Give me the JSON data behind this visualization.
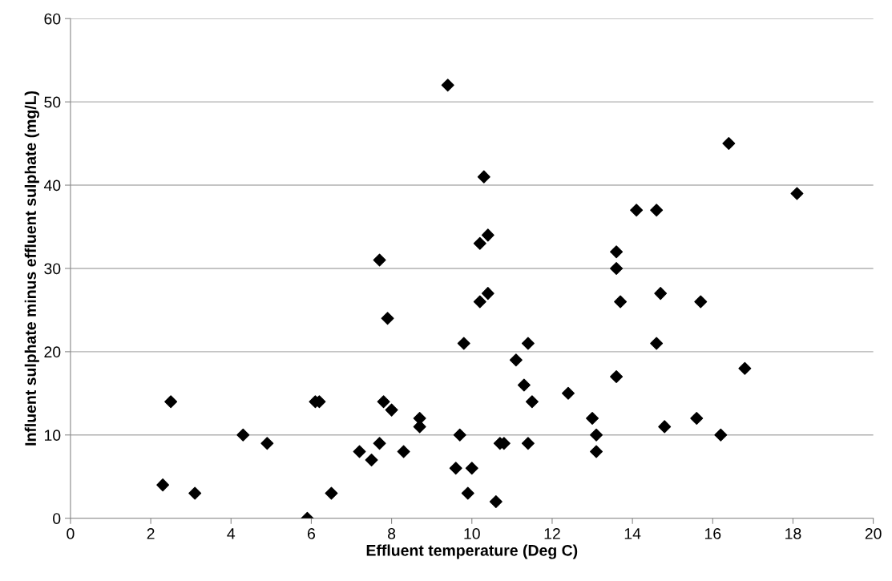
{
  "chart_data": {
    "type": "scatter",
    "xlabel": "Effluent temperature (Deg C)",
    "ylabel": "Influent sulphate minus effluent sulphate (mg/L)",
    "x": [
      2.3,
      2.5,
      3.1,
      4.3,
      4.9,
      5.9,
      6.1,
      6.2,
      6.5,
      7.2,
      7.5,
      7.7,
      7.7,
      7.8,
      7.9,
      8.0,
      8.3,
      8.7,
      8.7,
      9.4,
      9.6,
      9.7,
      9.8,
      9.9,
      10.0,
      10.2,
      10.2,
      10.3,
      10.4,
      10.4,
      10.6,
      10.7,
      10.8,
      11.1,
      11.3,
      11.4,
      11.4,
      11.5,
      12.4,
      13.0,
      13.1,
      13.1,
      13.6,
      13.6,
      13.6,
      13.7,
      14.1,
      14.6,
      14.6,
      14.7,
      14.8,
      15.6,
      15.7,
      16.2,
      16.4,
      16.8,
      18.1
    ],
    "values": [
      4,
      14,
      3,
      10,
      9,
      0,
      14,
      14,
      3,
      8,
      7,
      31,
      9,
      14,
      24,
      13,
      8,
      12,
      11,
      52,
      6,
      10,
      21,
      3,
      6,
      33,
      26,
      41,
      34,
      27,
      2,
      9,
      9,
      19,
      16,
      21,
      9,
      14,
      15,
      12,
      10,
      8,
      32,
      30,
      17,
      26,
      37,
      37,
      21,
      27,
      11,
      12,
      26,
      10,
      45,
      18,
      39
    ],
    "color": "#000000",
    "marker": "diamond",
    "grid": "y",
    "xlim": [
      0,
      20
    ],
    "xticks": [
      0,
      2,
      4,
      6,
      8,
      10,
      12,
      14,
      16,
      18,
      20
    ],
    "ylim": [
      0,
      60
    ],
    "yticks": [
      0,
      10,
      20,
      30,
      40,
      50,
      60
    ]
  }
}
